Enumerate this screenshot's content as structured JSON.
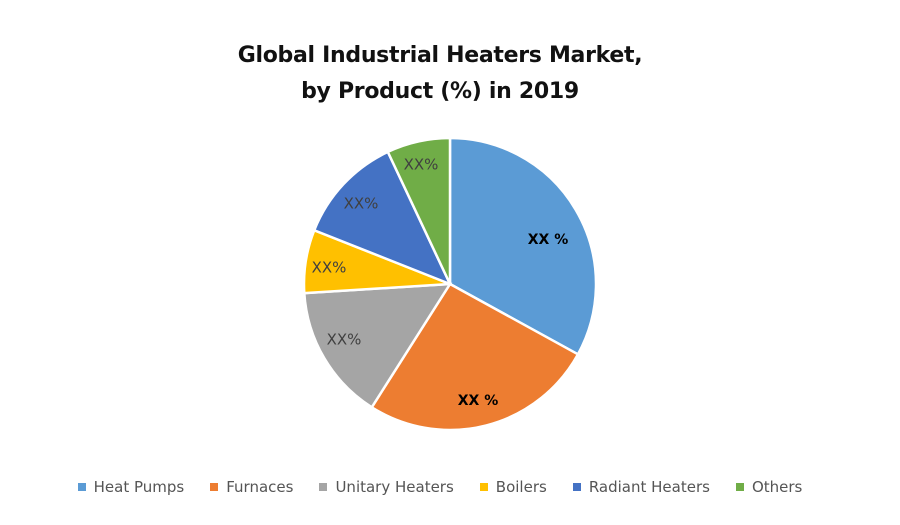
{
  "chart_data": {
    "type": "pie",
    "title": "Global Industrial Heaters Market, by Product (%) in 2019",
    "title_lines": [
      "Global Industrial Heaters Market,",
      "by Product (%) in 2019"
    ],
    "legend_position": "bottom",
    "categories": [
      "Heat Pumps",
      "Furnaces",
      "Unitary Heaters",
      "Boilers",
      "Radiant Heaters",
      "Others"
    ],
    "values": [
      33,
      26,
      15,
      7,
      12,
      7
    ],
    "data_labels": [
      "XX %",
      "XX %",
      "XX%",
      "XX%",
      "XX%",
      "XX%"
    ],
    "colors": [
      "#5B9BD5",
      "#ED7D31",
      "#A5A5A5",
      "#FFC000",
      "#4472C4",
      "#70AD47"
    ],
    "label_bold": [
      true,
      true,
      false,
      false,
      false,
      false
    ]
  }
}
